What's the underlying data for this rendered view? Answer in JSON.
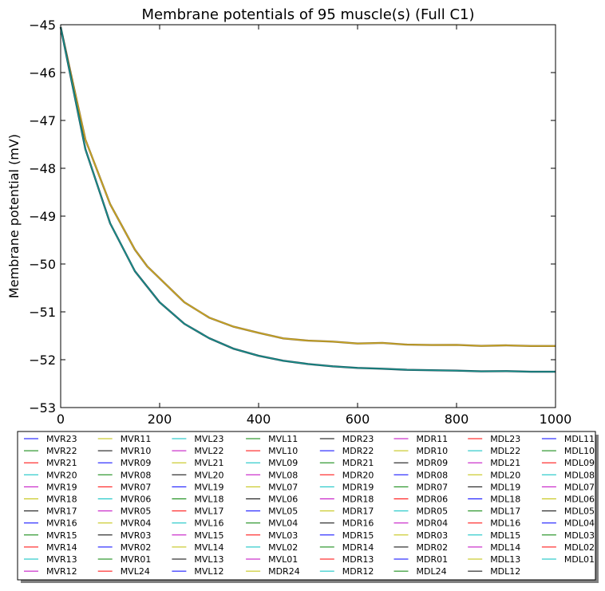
{
  "chart_data": {
    "type": "line",
    "title": "Membrane potentials of 95 muscle(s) (Full C1)",
    "xlabel": "",
    "ylabel": "Membrane potential (mV)",
    "xlim": [
      0,
      1000
    ],
    "ylim": [
      -53,
      -45
    ],
    "xticks": [
      0,
      200,
      400,
      600,
      800,
      1000
    ],
    "xtick_labels": [
      "0",
      "200",
      "400",
      "600",
      "800",
      "1000"
    ],
    "yticks": [
      -53,
      -52,
      -51,
      -50,
      -49,
      -48,
      -47,
      -46,
      -45
    ],
    "ytick_labels": [
      "−53",
      "−52",
      "−51",
      "−50",
      "−49",
      "−48",
      "−47",
      "−46",
      "−45"
    ],
    "grid": false,
    "legend_placement": "below plot",
    "legend_columns": 8,
    "curve_groups": [
      {
        "label": "upper group (overlapping traces, appear olive/orange)",
        "color": "#c9a820",
        "x": [
          0,
          50,
          100,
          150,
          175,
          200,
          250,
          300,
          350,
          400,
          450,
          500,
          550,
          600,
          650,
          700,
          750,
          800,
          850,
          900,
          950,
          1000
        ],
        "y": [
          -45.05,
          -47.4,
          -48.75,
          -49.7,
          -50.05,
          -50.3,
          -50.8,
          -51.12,
          -51.3,
          -51.45,
          -51.55,
          -51.6,
          -51.63,
          -51.65,
          -51.66,
          -51.68,
          -51.69,
          -51.7,
          -51.7,
          -51.71,
          -51.71,
          -51.71
        ]
      },
      {
        "label": "lower group (overlapping traces, appear teal/dark)",
        "color": "#17948c",
        "x": [
          0,
          50,
          100,
          150,
          200,
          250,
          300,
          350,
          400,
          450,
          500,
          550,
          600,
          650,
          700,
          750,
          800,
          850,
          900,
          950,
          1000
        ],
        "y": [
          -45.05,
          -47.6,
          -49.15,
          -50.15,
          -50.8,
          -51.25,
          -51.55,
          -51.77,
          -51.92,
          -52.02,
          -52.09,
          -52.14,
          -52.17,
          -52.19,
          -52.21,
          -52.22,
          -52.23,
          -52.24,
          -52.24,
          -52.25,
          -52.25
        ]
      }
    ],
    "legend_entries": [
      {
        "name": "MVR23",
        "color": "#0000ff"
      },
      {
        "name": "MVR22",
        "color": "#008000"
      },
      {
        "name": "MVR21",
        "color": "#ff0000"
      },
      {
        "name": "MVR20",
        "color": "#00bfbf"
      },
      {
        "name": "MVR19",
        "color": "#bf00bf"
      },
      {
        "name": "MVR18",
        "color": "#bfbf00"
      },
      {
        "name": "MVR17",
        "color": "#000000"
      },
      {
        "name": "MVR16",
        "color": "#0000ff"
      },
      {
        "name": "MVR15",
        "color": "#008000"
      },
      {
        "name": "MVR14",
        "color": "#ff0000"
      },
      {
        "name": "MVR13",
        "color": "#00bfbf"
      },
      {
        "name": "MVR12",
        "color": "#bf00bf"
      },
      {
        "name": "MVR11",
        "color": "#bfbf00"
      },
      {
        "name": "MVR10",
        "color": "#000000"
      },
      {
        "name": "MVR09",
        "color": "#0000ff"
      },
      {
        "name": "MVR08",
        "color": "#008000"
      },
      {
        "name": "MVR07",
        "color": "#ff0000"
      },
      {
        "name": "MVR06",
        "color": "#00bfbf"
      },
      {
        "name": "MVR05",
        "color": "#bf00bf"
      },
      {
        "name": "MVR04",
        "color": "#bfbf00"
      },
      {
        "name": "MVR03",
        "color": "#000000"
      },
      {
        "name": "MVR02",
        "color": "#0000ff"
      },
      {
        "name": "MVR01",
        "color": "#008000"
      },
      {
        "name": "MVL24",
        "color": "#ff0000"
      },
      {
        "name": "MVL23",
        "color": "#00bfbf"
      },
      {
        "name": "MVL22",
        "color": "#bf00bf"
      },
      {
        "name": "MVL21",
        "color": "#bfbf00"
      },
      {
        "name": "MVL20",
        "color": "#000000"
      },
      {
        "name": "MVL19",
        "color": "#0000ff"
      },
      {
        "name": "MVL18",
        "color": "#008000"
      },
      {
        "name": "MVL17",
        "color": "#ff0000"
      },
      {
        "name": "MVL16",
        "color": "#00bfbf"
      },
      {
        "name": "MVL15",
        "color": "#bf00bf"
      },
      {
        "name": "MVL14",
        "color": "#bfbf00"
      },
      {
        "name": "MVL13",
        "color": "#000000"
      },
      {
        "name": "MVL12",
        "color": "#0000ff"
      },
      {
        "name": "MVL11",
        "color": "#008000"
      },
      {
        "name": "MVL10",
        "color": "#ff0000"
      },
      {
        "name": "MVL09",
        "color": "#00bfbf"
      },
      {
        "name": "MVL08",
        "color": "#bf00bf"
      },
      {
        "name": "MVL07",
        "color": "#bfbf00"
      },
      {
        "name": "MVL06",
        "color": "#000000"
      },
      {
        "name": "MVL05",
        "color": "#0000ff"
      },
      {
        "name": "MVL04",
        "color": "#008000"
      },
      {
        "name": "MVL03",
        "color": "#ff0000"
      },
      {
        "name": "MVL02",
        "color": "#00bfbf"
      },
      {
        "name": "MVL01",
        "color": "#bf00bf"
      },
      {
        "name": "MDR24",
        "color": "#bfbf00"
      },
      {
        "name": "MDR23",
        "color": "#000000"
      },
      {
        "name": "MDR22",
        "color": "#0000ff"
      },
      {
        "name": "MDR21",
        "color": "#008000"
      },
      {
        "name": "MDR20",
        "color": "#ff0000"
      },
      {
        "name": "MDR19",
        "color": "#00bfbf"
      },
      {
        "name": "MDR18",
        "color": "#bf00bf"
      },
      {
        "name": "MDR17",
        "color": "#bfbf00"
      },
      {
        "name": "MDR16",
        "color": "#000000"
      },
      {
        "name": "MDR15",
        "color": "#0000ff"
      },
      {
        "name": "MDR14",
        "color": "#008000"
      },
      {
        "name": "MDR13",
        "color": "#ff0000"
      },
      {
        "name": "MDR12",
        "color": "#00bfbf"
      },
      {
        "name": "MDR11",
        "color": "#bf00bf"
      },
      {
        "name": "MDR10",
        "color": "#bfbf00"
      },
      {
        "name": "MDR09",
        "color": "#000000"
      },
      {
        "name": "MDR08",
        "color": "#0000ff"
      },
      {
        "name": "MDR07",
        "color": "#008000"
      },
      {
        "name": "MDR06",
        "color": "#ff0000"
      },
      {
        "name": "MDR05",
        "color": "#00bfbf"
      },
      {
        "name": "MDR04",
        "color": "#bf00bf"
      },
      {
        "name": "MDR03",
        "color": "#bfbf00"
      },
      {
        "name": "MDR02",
        "color": "#000000"
      },
      {
        "name": "MDR01",
        "color": "#0000ff"
      },
      {
        "name": "MDL24",
        "color": "#008000"
      },
      {
        "name": "MDL23",
        "color": "#ff0000"
      },
      {
        "name": "MDL22",
        "color": "#00bfbf"
      },
      {
        "name": "MDL21",
        "color": "#bf00bf"
      },
      {
        "name": "MDL20",
        "color": "#bfbf00"
      },
      {
        "name": "MDL19",
        "color": "#000000"
      },
      {
        "name": "MDL18",
        "color": "#0000ff"
      },
      {
        "name": "MDL17",
        "color": "#008000"
      },
      {
        "name": "MDL16",
        "color": "#ff0000"
      },
      {
        "name": "MDL15",
        "color": "#00bfbf"
      },
      {
        "name": "MDL14",
        "color": "#bf00bf"
      },
      {
        "name": "MDL13",
        "color": "#bfbf00"
      },
      {
        "name": "MDL12",
        "color": "#000000"
      },
      {
        "name": "MDL11",
        "color": "#0000ff"
      },
      {
        "name": "MDL10",
        "color": "#008000"
      },
      {
        "name": "MDL09",
        "color": "#ff0000"
      },
      {
        "name": "MDL08",
        "color": "#00bfbf"
      },
      {
        "name": "MDL07",
        "color": "#bf00bf"
      },
      {
        "name": "MDL06",
        "color": "#bfbf00"
      },
      {
        "name": "MDL05",
        "color": "#000000"
      },
      {
        "name": "MDL04",
        "color": "#0000ff"
      },
      {
        "name": "MDL03",
        "color": "#008000"
      },
      {
        "name": "MDL02",
        "color": "#ff0000"
      },
      {
        "name": "MDL01",
        "color": "#00bfbf"
      }
    ]
  }
}
